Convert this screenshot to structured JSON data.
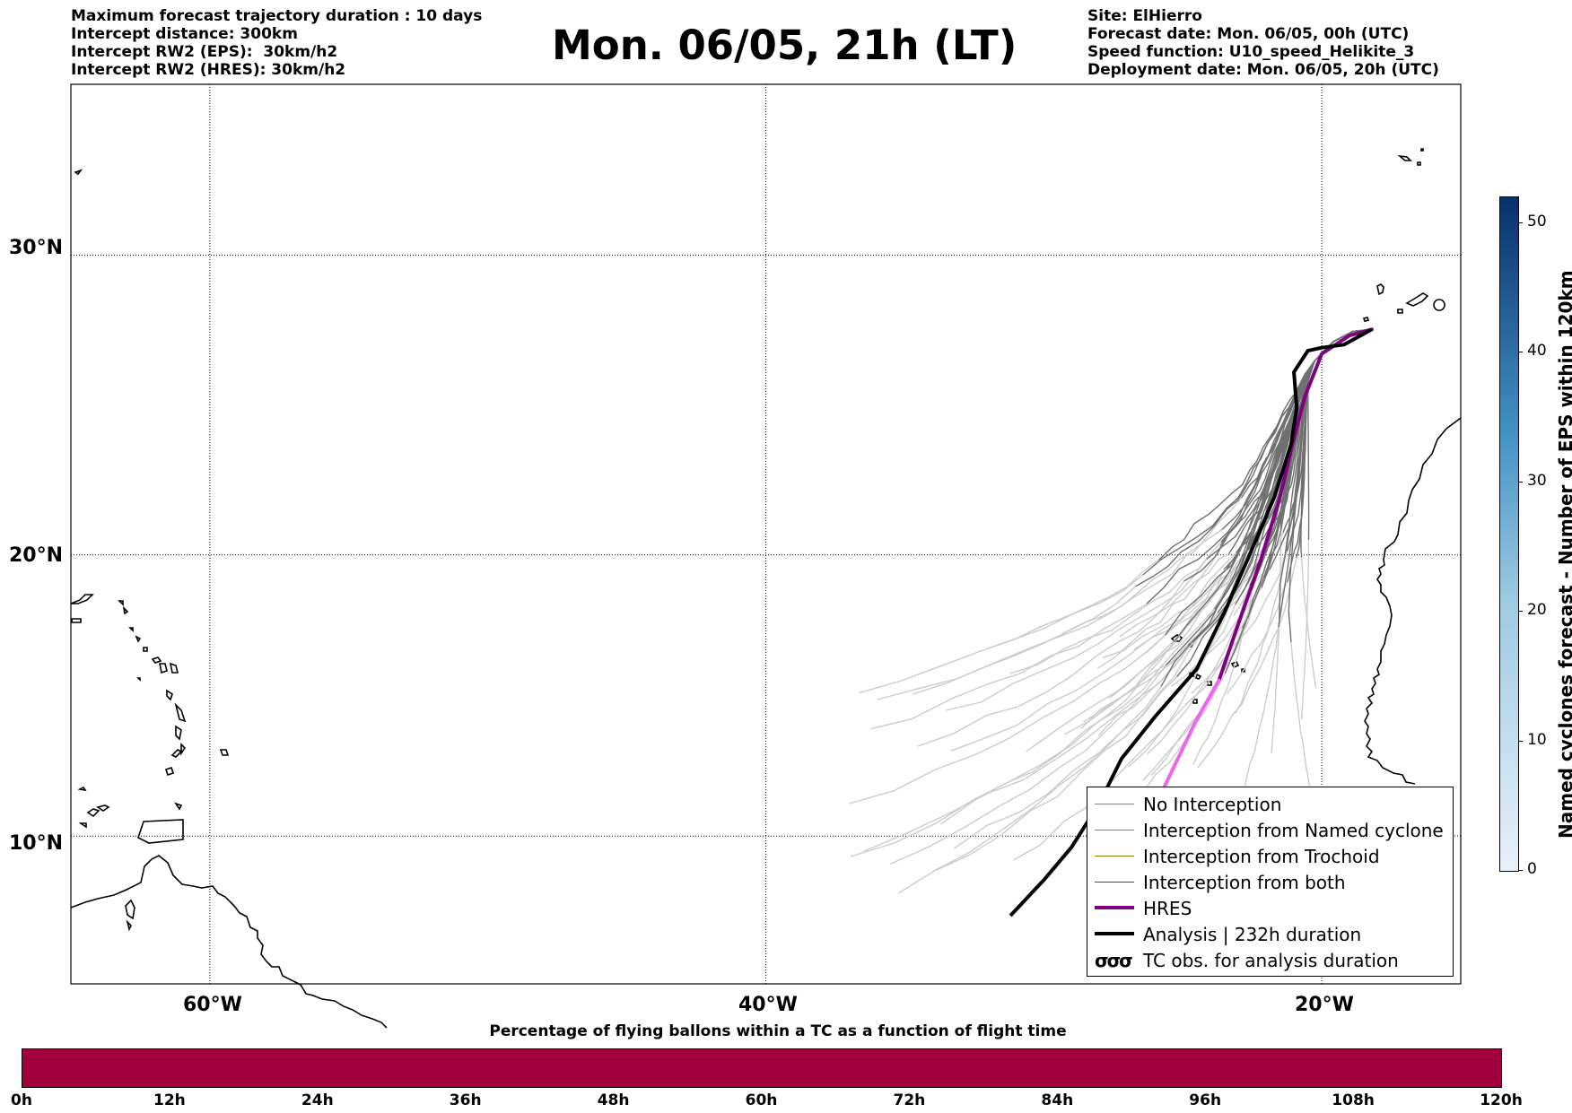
{
  "header": {
    "left_lines": [
      "Maximum forecast trajectory duration : 10 days",
      "Intercept distance: 300km",
      "Intercept RW2 (EPS):  30km/h2",
      "Intercept RW2 (HRES): 30km/h2"
    ],
    "title": "Mon. 06/05, 21h (LT)",
    "right_lines": [
      "Site: ElHierro",
      "Forecast date: Mon. 06/05, 00h (UTC)",
      "Speed function: U10_speed_Helikite_3",
      "Deployment date: Mon. 06/05, 20h (UTC)"
    ]
  },
  "map": {
    "lat_labels": [
      "30°N",
      "20°N",
      "10°N"
    ],
    "lon_labels": [
      "60°W",
      "40°W",
      "20°W"
    ],
    "lat_values": [
      30,
      20,
      10
    ],
    "lon_values": [
      -60,
      -40,
      -20
    ],
    "extent": {
      "lon_min": -65,
      "lon_max": -15,
      "lat_min": 4.6,
      "lat_max": 35.3
    },
    "grid": true,
    "site": {
      "name": "ElHierro",
      "lon": -18.2,
      "lat": 27.6
    },
    "hres_track": [
      [
        -18.2,
        27.6
      ],
      [
        -19,
        27.4
      ],
      [
        -20,
        26.8
      ],
      [
        -20.6,
        25.4
      ],
      [
        -21,
        24
      ],
      [
        -21.5,
        22
      ],
      [
        -22.2,
        19.8
      ],
      [
        -23,
        17.6
      ],
      [
        -23.7,
        15.6
      ],
      [
        -24.5,
        14.2
      ],
      [
        -25.8,
        11.5
      ],
      [
        -26.5,
        10.5
      ]
    ],
    "analysis_track": [
      [
        -18.2,
        27.6
      ],
      [
        -19.2,
        27.1
      ],
      [
        -20,
        27
      ],
      [
        -20.5,
        26.9
      ],
      [
        -21,
        26.2
      ],
      [
        -20.9,
        25
      ],
      [
        -21.1,
        23.8
      ],
      [
        -21.7,
        22
      ],
      [
        -22.6,
        20
      ],
      [
        -23.5,
        18
      ],
      [
        -24.5,
        16
      ],
      [
        -26,
        14.3
      ],
      [
        -27.2,
        12.8
      ],
      [
        -28,
        11.2
      ],
      [
        -29,
        9.6
      ],
      [
        -30,
        8.4
      ],
      [
        -31.2,
        7.1
      ]
    ]
  },
  "legend": {
    "items": [
      {
        "label": "No Interception",
        "color": "#808080",
        "width": 1
      },
      {
        "label": "Interception from Named cyclone",
        "color": "#ff5a00",
        "width": 1
      },
      {
        "label": "Interception from Trochoid",
        "color": "#808000",
        "width": 1
      },
      {
        "label": "Interception from both",
        "color": "#008000",
        "width": 1
      },
      {
        "label": "HRES",
        "color": "#800080",
        "width": 4
      },
      {
        "label": "Analysis | 232h duration",
        "color": "#000000",
        "width": 4
      }
    ],
    "tc_symbol": "σσσ",
    "tc_label": "TC obs. for analysis duration"
  },
  "colorbar": {
    "label": "Named cyclones forecast - Number of EPS within 120km",
    "ticks": [
      "0",
      "10",
      "20",
      "30",
      "40",
      "50"
    ],
    "min": 0,
    "max": 52,
    "color_low": "#e8f0fa",
    "color_high": "#08306b"
  },
  "bottom_bar": {
    "title": "Percentage of flying ballons within a TC as a function of flight time",
    "ticks": [
      "0h",
      "12h",
      "24h",
      "36h",
      "48h",
      "60h",
      "72h",
      "84h",
      "96h",
      "108h",
      "120h"
    ],
    "color": "#a0003c"
  },
  "colors": {
    "eps_dark": "#6e6e6e",
    "eps_light": "#cccccc",
    "hres_light": "#ee66ee",
    "coast": "#000000"
  }
}
